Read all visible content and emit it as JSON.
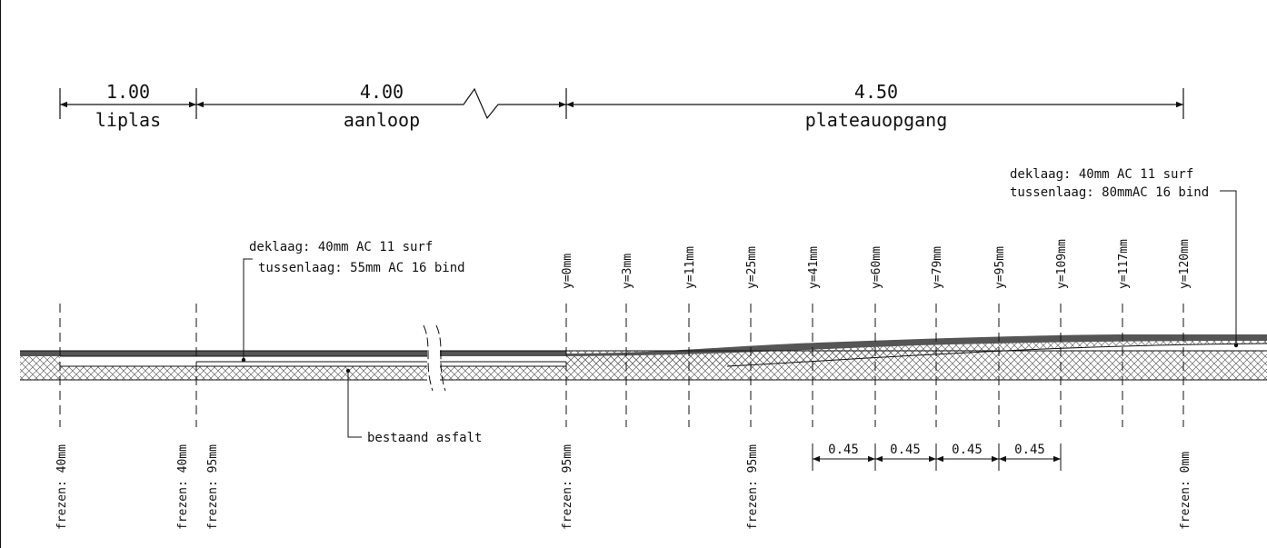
{
  "dimensions": [
    {
      "value": "1.00",
      "label": "liplas"
    },
    {
      "value": "4.00",
      "label": "aanloop"
    },
    {
      "value": "4.50",
      "label": "plateauopgang"
    }
  ],
  "notes": {
    "left_top": "deklaag: 40mm AC 11 surf",
    "left_bottom": "tussenlaag: 55mm AC 16 bind",
    "right_top": "deklaag: 40mm AC 11 surf",
    "right_bottom": "tussenlaag: 80mmAC 16 bind",
    "existing": "bestaand asfalt"
  },
  "y_labels": [
    "y=0mm",
    "y=3mm",
    "y=11mm",
    "y=25mm",
    "y=41mm",
    "y=60mm",
    "y=79mm",
    "y=95mm",
    "y=109mm",
    "y=117mm",
    "y=120mm"
  ],
  "frezen_labels": [
    "frezen: 40mm",
    "frezen: 40mm",
    "frezen: 95mm",
    "frezen: 95mm",
    "frezen: 95mm",
    "frezen: 0mm"
  ],
  "spacing_labels": [
    "0.45",
    "0.45",
    "0.45",
    "0.45"
  ],
  "colors": {
    "line": "#111111",
    "hatch": "#555555",
    "surface": "#555555"
  }
}
